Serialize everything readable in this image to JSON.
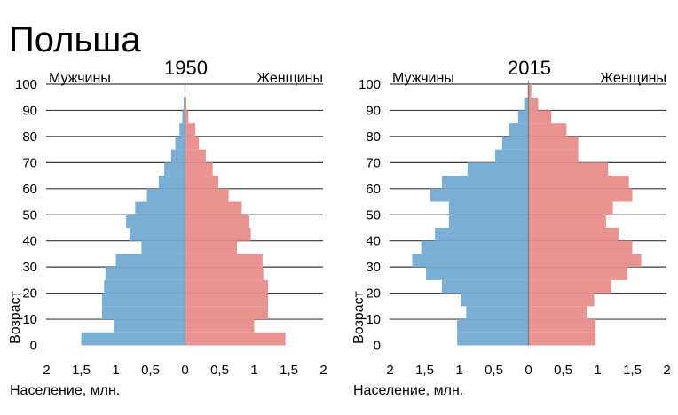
{
  "title": "Польша",
  "chart_data": [
    {
      "type": "bar",
      "subtype": "population-pyramid",
      "title": "1950",
      "left_label": "Мужчины",
      "right_label": "Женщины",
      "ylabel": "Возраст",
      "xlabel": "Население, млн.",
      "age_ticks": [
        "0",
        "10",
        "20",
        "30",
        "40",
        "50",
        "60",
        "70",
        "80",
        "90",
        "100"
      ],
      "x_ticks": [
        "2",
        "1,5",
        "1",
        "0,5",
        "0",
        "0,5",
        "1",
        "1,5",
        "2"
      ],
      "age_range": [
        0,
        100
      ],
      "x_range": [
        -2,
        2
      ],
      "age_groups": [
        0,
        5,
        10,
        15,
        20,
        25,
        30,
        35,
        40,
        45,
        50,
        55,
        60,
        65,
        70,
        75,
        80,
        85,
        90,
        95
      ],
      "series": [
        {
          "name": "Мужчины",
          "side": "left",
          "color": "#7aaed5",
          "values": [
            1.5,
            1.03,
            1.2,
            1.2,
            1.17,
            1.15,
            1.0,
            0.63,
            0.8,
            0.85,
            0.72,
            0.55,
            0.38,
            0.3,
            0.2,
            0.14,
            0.08,
            0.04,
            0.02,
            0.0
          ]
        },
        {
          "name": "Женщины",
          "side": "right",
          "color": "#e99391",
          "values": [
            1.45,
            1.0,
            1.2,
            1.2,
            1.2,
            1.13,
            1.12,
            0.75,
            0.95,
            0.93,
            0.82,
            0.63,
            0.48,
            0.4,
            0.3,
            0.2,
            0.15,
            0.05,
            0.02,
            0.0
          ]
        }
      ]
    },
    {
      "type": "bar",
      "subtype": "population-pyramid",
      "title": "2015",
      "left_label": "Мужчины",
      "right_label": "Женщины",
      "ylabel": "Возраст",
      "xlabel": "Население, млн.",
      "age_ticks": [
        "0",
        "10",
        "20",
        "30",
        "40",
        "50",
        "60",
        "70",
        "80",
        "90",
        "100"
      ],
      "x_ticks": [
        "2",
        "1,5",
        "1",
        "0,5",
        "0",
        "0,5",
        "1",
        "1,5",
        "2"
      ],
      "age_range": [
        0,
        100
      ],
      "x_range": [
        -2,
        2
      ],
      "age_groups": [
        0,
        5,
        10,
        15,
        20,
        25,
        30,
        35,
        40,
        45,
        50,
        55,
        60,
        65,
        70,
        75,
        80,
        85,
        90,
        95
      ],
      "series": [
        {
          "name": "Мужчины",
          "side": "left",
          "color": "#7aaed5",
          "values": [
            1.03,
            1.03,
            0.9,
            0.98,
            1.25,
            1.48,
            1.68,
            1.55,
            1.35,
            1.15,
            1.15,
            1.42,
            1.25,
            0.88,
            0.48,
            0.38,
            0.28,
            0.15,
            0.05,
            0.01
          ]
        },
        {
          "name": "Женщины",
          "side": "right",
          "color": "#e99391",
          "values": [
            0.97,
            0.97,
            0.85,
            0.95,
            1.2,
            1.43,
            1.63,
            1.5,
            1.3,
            1.12,
            1.22,
            1.5,
            1.45,
            1.15,
            0.72,
            0.72,
            0.55,
            0.33,
            0.14,
            0.04
          ]
        }
      ]
    }
  ]
}
